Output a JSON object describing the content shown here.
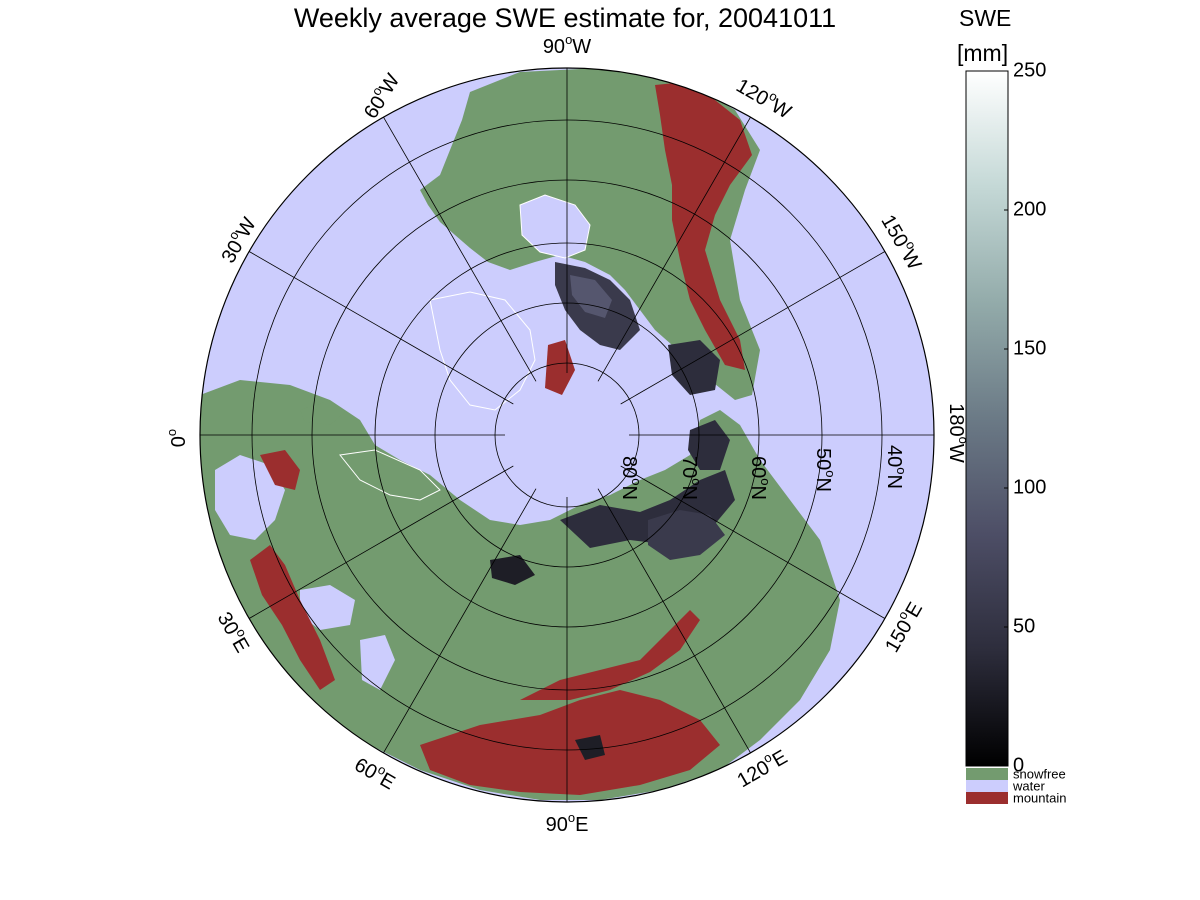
{
  "title": "Weekly average SWE estimate for, 20041011",
  "colorbar": {
    "title_line1": "SWE",
    "title_line2": "[mm]",
    "min": 0,
    "max": 250,
    "ticks": [
      "250",
      "200",
      "150",
      "100",
      "50",
      "0"
    ],
    "gradient_stops": [
      "#000000",
      "#2d2d3c",
      "#4d4e66",
      "#6b7a86",
      "#93abaa",
      "#c4d8d6",
      "#ffffff"
    ],
    "categories": [
      {
        "label": "snowfree",
        "color": "#739b6f"
      },
      {
        "label": "water",
        "color": "#cccdfd"
      },
      {
        "label": "mountain",
        "color": "#9b2e2e"
      }
    ]
  },
  "map": {
    "projection": "north-polar-stereographic",
    "colors": {
      "water": "#cccdfd",
      "land": "#739b6f",
      "mountain": "#9b2e2e",
      "snow_shallow": "#1e1e26",
      "snow_mid": "#3a3a4c",
      "snow_deep": "#55566e",
      "ice_outline": "#ffffff",
      "grid": "#000000"
    },
    "longitude_labels": [
      {
        "text": "90",
        "hemi": "W"
      },
      {
        "text": "60",
        "hemi": "W"
      },
      {
        "text": "30",
        "hemi": "W"
      },
      {
        "text": "0",
        "hemi": ""
      },
      {
        "text": "120",
        "hemi": "W"
      },
      {
        "text": "150",
        "hemi": "W"
      },
      {
        "text": "180",
        "hemi": "W"
      },
      {
        "text": "150",
        "hemi": "E"
      },
      {
        "text": "120",
        "hemi": "E"
      },
      {
        "text": "90",
        "hemi": "E"
      },
      {
        "text": "60",
        "hemi": "E"
      },
      {
        "text": "30",
        "hemi": "E"
      }
    ],
    "latitude_labels": [
      {
        "text": "80",
        "hemi": "N"
      },
      {
        "text": "70",
        "hemi": "N"
      },
      {
        "text": "60",
        "hemi": "N"
      },
      {
        "text": "50",
        "hemi": "N"
      },
      {
        "text": "40",
        "hemi": "N"
      }
    ],
    "degree_symbol": "o"
  }
}
